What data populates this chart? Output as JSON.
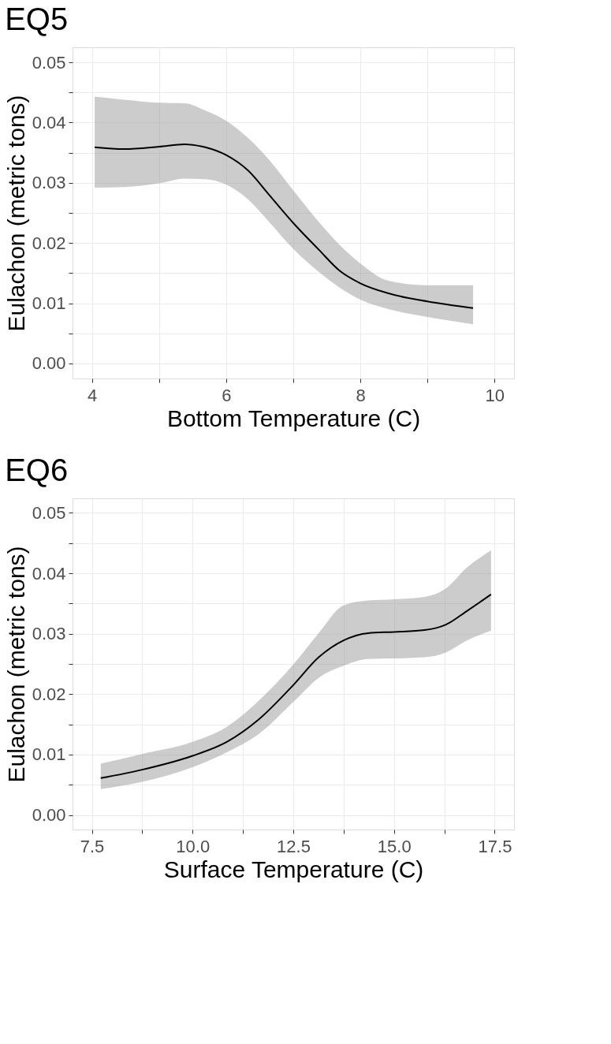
{
  "chart_data": [
    {
      "type": "line",
      "title": "EQ5",
      "xlabel": "Bottom Temperature (C)",
      "ylabel": "Eulachon (metric tons)",
      "x": [
        4.04,
        4.48,
        5.0,
        5.38,
        5.69,
        6.0,
        6.33,
        6.64,
        7.01,
        7.38,
        7.69,
        8.0,
        8.43,
        9.0,
        9.68
      ],
      "series": [
        {
          "color": "#000000",
          "values": [
            0.0359,
            0.0356,
            0.036,
            0.0364,
            0.0359,
            0.0346,
            0.032,
            0.028,
            0.0232,
            0.0189,
            0.0154,
            0.0133,
            0.0116,
            0.0103,
            0.0092
          ],
          "lower": [
            0.0292,
            0.0293,
            0.0299,
            0.0307,
            0.0306,
            0.0297,
            0.0272,
            0.0235,
            0.0189,
            0.0152,
            0.0126,
            0.0106,
            0.009,
            0.0077,
            0.0065
          ],
          "upper": [
            0.0443,
            0.0438,
            0.0433,
            0.0432,
            0.042,
            0.0403,
            0.0374,
            0.0338,
            0.0286,
            0.0235,
            0.0197,
            0.0166,
            0.0137,
            0.013,
            0.013
          ]
        }
      ],
      "xlim": [
        3.71,
        10.29
      ],
      "xticks": [
        4,
        {
          "value": 5,
          "label": null
        },
        6,
        {
          "value": 7,
          "label": null
        },
        8,
        {
          "value": 9,
          "label": null
        },
        10
      ],
      "ylim": [
        -0.0025,
        0.0525
      ],
      "yticks": [
        {
          "value": 0,
          "label": "0.00"
        },
        {
          "value": 0.005,
          "label": null
        },
        0.01,
        {
          "value": 0.015,
          "label": null
        },
        0.02,
        {
          "value": 0.025,
          "label": null
        },
        0.03,
        {
          "value": 0.035,
          "label": null
        },
        0.04,
        {
          "value": 0.045,
          "label": null
        },
        0.05
      ],
      "grid": true,
      "line_style": "solid",
      "marker": "none"
    },
    {
      "type": "line",
      "title": "EQ6",
      "xlabel": "Surface Temperature (C)",
      "ylabel": "Eulachon (metric tons)",
      "x": [
        7.72,
        8.75,
        10.0,
        10.85,
        11.64,
        12.5,
        13.13,
        13.75,
        14.36,
        15.0,
        15.76,
        16.29,
        16.82,
        17.41
      ],
      "series": [
        {
          "color": "#000000",
          "values": [
            0.0061,
            0.0075,
            0.0098,
            0.0121,
            0.0158,
            0.0215,
            0.0261,
            0.0289,
            0.0301,
            0.0303,
            0.0306,
            0.0315,
            0.0338,
            0.0365
          ],
          "lower": [
            0.0043,
            0.0055,
            0.0079,
            0.0104,
            0.0134,
            0.0187,
            0.0227,
            0.0247,
            0.0258,
            0.0259,
            0.0261,
            0.0269,
            0.0289,
            0.0305
          ],
          "upper": [
            0.0085,
            0.0101,
            0.0121,
            0.0146,
            0.0189,
            0.0249,
            0.0301,
            0.0347,
            0.0355,
            0.0357,
            0.0361,
            0.0375,
            0.041,
            0.0438
          ]
        }
      ],
      "xlim": [
        7.02,
        17.98
      ],
      "xticks": [
        7.5,
        {
          "value": 8.75,
          "label": null
        },
        {
          "value": 10,
          "label": "10.0"
        },
        {
          "value": 11.25,
          "label": null
        },
        12.5,
        {
          "value": 13.75,
          "label": null
        },
        {
          "value": 15,
          "label": "15.0"
        },
        {
          "value": 16.25,
          "label": null
        },
        17.5
      ],
      "ylim": [
        -0.0024,
        0.0524
      ],
      "yticks": [
        {
          "value": 0,
          "label": "0.00"
        },
        {
          "value": 0.005,
          "label": null
        },
        0.01,
        {
          "value": 0.015,
          "label": null
        },
        0.02,
        {
          "value": 0.025,
          "label": null
        },
        0.03,
        {
          "value": 0.035,
          "label": null
        },
        0.04,
        {
          "value": 0.045,
          "label": null
        },
        0.05
      ],
      "grid": true,
      "line_style": "solid",
      "marker": "none"
    }
  ]
}
